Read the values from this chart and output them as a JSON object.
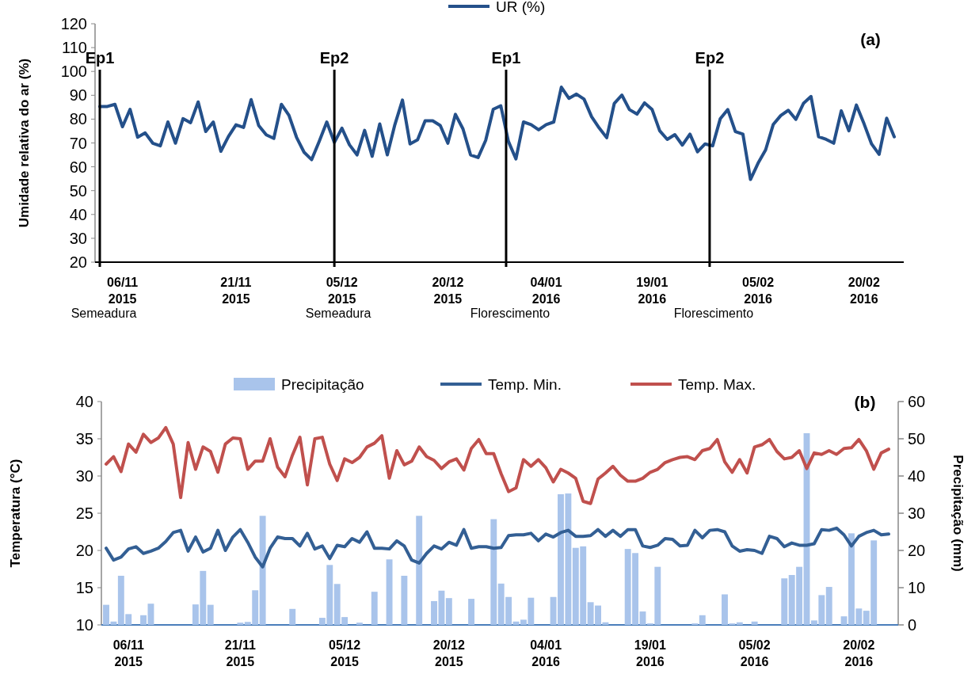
{
  "chart_data": [
    {
      "type": "line",
      "title": "(a)",
      "ylabel": "Umidade relativa do ar (%)",
      "categories": [
        null,
        null,
        null,
        "06/11\n2015",
        null,
        null,
        null,
        null,
        null,
        null,
        null,
        null,
        null,
        null,
        null,
        null,
        null,
        null,
        "21/11\n2015",
        null,
        null,
        null,
        null,
        null,
        null,
        null,
        null,
        null,
        null,
        null,
        null,
        null,
        "05/12\n2015",
        null,
        null,
        null,
        null,
        null,
        null,
        null,
        null,
        null,
        null,
        null,
        null,
        null,
        "20/12\n2015",
        null,
        null,
        null,
        null,
        null,
        null,
        null,
        null,
        null,
        null,
        null,
        null,
        "04/01\n2016",
        null,
        null,
        null,
        null,
        null,
        null,
        null,
        null,
        null,
        null,
        null,
        null,
        null,
        "19/01\n2016",
        null,
        null,
        null,
        null,
        null,
        null,
        null,
        null,
        null,
        null,
        null,
        null,
        null,
        "05/02\n2016",
        null,
        null,
        null,
        null,
        null,
        null,
        null,
        null,
        null,
        null,
        null,
        null,
        null,
        "20/02\n2016",
        null,
        null,
        null,
        null
      ],
      "series": [
        {
          "name": "UR (%)",
          "color": "#24508a",
          "values": [
            85.3,
            85.3,
            86.2,
            76.8,
            84.1,
            72.4,
            74.2,
            69.9,
            68.8,
            78.8,
            69.9,
            80.2,
            78.5,
            87.2,
            74.8,
            78.8,
            66.5,
            72.7,
            77.6,
            76.5,
            88.2,
            77.3,
            73.4,
            71.9,
            86.2,
            81.6,
            72.4,
            66.1,
            63.0,
            70.7,
            78.8,
            70.2,
            76.2,
            69.2,
            65.0,
            75.3,
            64.4,
            78.0,
            65.0,
            77.7,
            88.0,
            69.6,
            71.3,
            79.3,
            79.3,
            77.3,
            69.9,
            82.0,
            75.9,
            65.0,
            63.9,
            71.1,
            84.1,
            85.6,
            70.7,
            63.3,
            78.8,
            77.7,
            75.5,
            77.7,
            78.8,
            93.4,
            88.7,
            90.5,
            88.4,
            81.0,
            76.3,
            72.2,
            86.6,
            90.1,
            84.0,
            82.1,
            86.8,
            84.0,
            75.1,
            71.5,
            73.5,
            69.1,
            73.7,
            66.3,
            69.6,
            68.8,
            80.1,
            84.0,
            74.8,
            73.7,
            54.7,
            61.5,
            67.1,
            77.7,
            81.5,
            83.7,
            79.9,
            86.6,
            89.5,
            72.6,
            71.5,
            69.9,
            83.5,
            75.1,
            85.9,
            78.1,
            69.6,
            65.2,
            80.4,
            72.6
          ]
        }
      ],
      "ylim": [
        20,
        120
      ],
      "yticks": [
        20,
        30,
        40,
        50,
        60,
        70,
        80,
        90,
        100,
        110,
        120
      ],
      "legend": "top",
      "annotations": [
        "Ep1",
        "Ep2",
        "Ep1",
        "Ep2",
        "Semeadura",
        "Semeadura",
        "Florescimento",
        "Florescimento"
      ]
    },
    {
      "type": "line",
      "title": "(b)",
      "ylabel": "Temperatura (°C)",
      "y2label": "Precipitação (mm)",
      "categories": [
        null,
        null,
        null,
        "06/11\n2015",
        null,
        null,
        null,
        null,
        null,
        null,
        null,
        null,
        null,
        null,
        null,
        null,
        null,
        null,
        "21/11\n2015",
        null,
        null,
        null,
        null,
        null,
        null,
        null,
        null,
        null,
        null,
        null,
        null,
        null,
        "05/12\n2015",
        null,
        null,
        null,
        null,
        null,
        null,
        null,
        null,
        null,
        null,
        null,
        null,
        null,
        "20/12\n2015",
        null,
        null,
        null,
        null,
        null,
        null,
        null,
        null,
        null,
        null,
        null,
        null,
        "04/01\n2016",
        null,
        null,
        null,
        null,
        null,
        null,
        null,
        null,
        null,
        null,
        null,
        null,
        null,
        "19/01\n2016",
        null,
        null,
        null,
        null,
        null,
        null,
        null,
        null,
        null,
        null,
        null,
        null,
        null,
        "05/02\n2016",
        null,
        null,
        null,
        null,
        null,
        null,
        null,
        null,
        null,
        null,
        null,
        null,
        null,
        "20/02\n2016",
        null,
        null,
        null,
        null
      ],
      "series": [
        {
          "name": "Precipitação",
          "type": "bar",
          "axis": "y2",
          "color": "#a9c4eb",
          "values": [
            5.4,
            0.9,
            13.2,
            2.9,
            0,
            2.6,
            5.7,
            0,
            0,
            0,
            0,
            0,
            5.5,
            14.5,
            5.4,
            0,
            0,
            0,
            0.6,
            0.8,
            9.3,
            29.3,
            0,
            0,
            0,
            4.3,
            0,
            0,
            0,
            1.9,
            16.1,
            11.0,
            2.1,
            0,
            0.6,
            0,
            8.9,
            0,
            17.6,
            0,
            13.2,
            0,
            29.3,
            0,
            6.4,
            9.2,
            7.2,
            0,
            0,
            7.0,
            0,
            0,
            28.4,
            11.1,
            7.5,
            0.9,
            1.4,
            7.3,
            0,
            0,
            7.5,
            35.1,
            35.3,
            20.7,
            21.1,
            6.1,
            5.2,
            0.7,
            0,
            0,
            20.4,
            19.3,
            3.6,
            0.4,
            15.6,
            0,
            0,
            0,
            0,
            0.4,
            2.6,
            0,
            0,
            8.2,
            0.4,
            0.7,
            0,
            0.9,
            0,
            0,
            0,
            12.5,
            13.4,
            15.6,
            51.5,
            1.2,
            8.0,
            10.2,
            0,
            2.3,
            24.6,
            4.4,
            3.8,
            22.7,
            0,
            0
          ]
        },
        {
          "name": "Temp. Min.",
          "color": "#335f94",
          "values": [
            20.3,
            18.7,
            19.1,
            20.2,
            20.5,
            19.6,
            19.9,
            20.3,
            21.2,
            22.4,
            22.7,
            19.9,
            21.8,
            19.8,
            20.3,
            22.7,
            20.0,
            21.8,
            22.8,
            21.1,
            19.1,
            17.8,
            20.3,
            21.8,
            21.6,
            21.6,
            20.6,
            22.3,
            20.2,
            20.6,
            18.9,
            20.7,
            20.5,
            21.6,
            21.1,
            22.5,
            20.3,
            20.3,
            20.2,
            21.3,
            20.6,
            18.7,
            18.3,
            19.6,
            20.6,
            20.2,
            21.1,
            20.7,
            22.8,
            20.3,
            20.5,
            20.5,
            20.3,
            20.4,
            22.0,
            22.1,
            22.1,
            22.3,
            21.3,
            22.2,
            21.8,
            22.4,
            22.7,
            21.9,
            21.9,
            22.0,
            22.8,
            21.9,
            22.7,
            21.9,
            22.8,
            22.8,
            20.6,
            20.4,
            20.7,
            21.6,
            21.5,
            20.6,
            20.7,
            22.7,
            21.7,
            22.7,
            22.8,
            22.5,
            20.6,
            19.9,
            20.1,
            20.0,
            19.6,
            21.9,
            21.6,
            20.5,
            21.0,
            20.7,
            20.7,
            20.9,
            22.8,
            22.7,
            23.0,
            22.1,
            20.6,
            21.9,
            22.4,
            22.7,
            22.1,
            22.2
          ]
        },
        {
          "name": "Temp. Max.",
          "color": "#c0504d",
          "values": [
            31.6,
            32.6,
            30.6,
            34.3,
            33.2,
            35.6,
            34.5,
            35.1,
            36.5,
            34.3,
            27.1,
            34.5,
            30.9,
            33.9,
            33.3,
            30.5,
            34.3,
            35.1,
            35.0,
            30.9,
            32.0,
            32.0,
            35.0,
            31.2,
            29.9,
            32.8,
            35.2,
            28.8,
            35.0,
            35.2,
            31.6,
            29.4,
            32.3,
            31.8,
            32.5,
            33.9,
            34.4,
            35.4,
            29.7,
            33.4,
            31.5,
            32.0,
            33.9,
            32.6,
            32.1,
            31.0,
            31.9,
            32.3,
            30.8,
            33.7,
            34.9,
            33.0,
            33.0,
            30.3,
            27.9,
            28.4,
            32.2,
            31.3,
            32.2,
            31.1,
            29.2,
            30.9,
            30.4,
            29.7,
            26.6,
            26.3,
            29.6,
            30.4,
            31.3,
            30.1,
            29.3,
            29.3,
            29.7,
            30.5,
            30.9,
            31.8,
            32.2,
            32.5,
            32.6,
            32.2,
            33.4,
            33.7,
            34.9,
            31.9,
            30.5,
            32.2,
            30.4,
            33.9,
            34.2,
            34.9,
            33.3,
            32.3,
            32.5,
            33.4,
            31.0,
            33.1,
            32.9,
            33.4,
            32.9,
            33.7,
            33.8,
            34.9,
            33.4,
            30.9,
            33.1,
            33.6
          ]
        }
      ],
      "ylim": [
        10,
        40
      ],
      "yticks": [
        10,
        15,
        20,
        25,
        30,
        35,
        40
      ],
      "y2lim": [
        0,
        60
      ],
      "y2ticks": [
        0,
        10,
        20,
        30,
        40,
        50,
        60
      ],
      "legend": "top"
    }
  ]
}
